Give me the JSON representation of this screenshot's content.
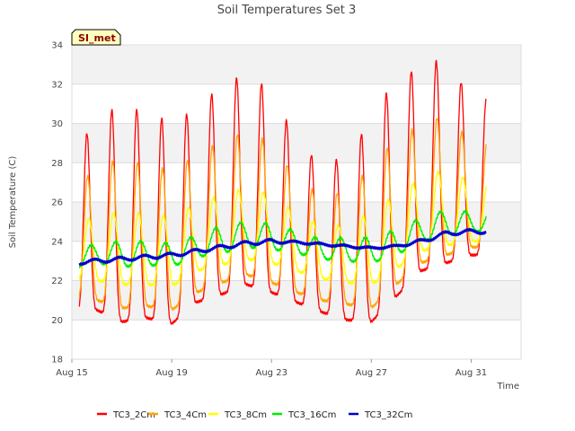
{
  "chart_data": {
    "type": "line",
    "title": "Soil Temperatures Set 3",
    "xlabel": "Time",
    "ylabel": "Soil Temperature (C)",
    "badge": "SI_met",
    "x_start": "Aug 15",
    "x_range_days": [
      0,
      18
    ],
    "xticks": [
      {
        "day": 0,
        "label": "Aug 15"
      },
      {
        "day": 4,
        "label": "Aug 19"
      },
      {
        "day": 8,
        "label": "Aug 23"
      },
      {
        "day": 12,
        "label": "Aug 27"
      },
      {
        "day": 16,
        "label": "Aug 31"
      }
    ],
    "ylim": [
      18,
      34
    ],
    "yticks": [
      18,
      20,
      22,
      24,
      26,
      28,
      30,
      32,
      34
    ],
    "grid": true,
    "legend_position": "bottom",
    "daily_max": {
      "TC3_2Cm": [
        28.4,
        30.2,
        31.0,
        30.5,
        30.1,
        30.7,
        32.0,
        32.5,
        31.7,
        29.1,
        27.9,
        28.3,
        30.2,
        32.4,
        32.8,
        33.4,
        31.2
      ],
      "TC3_4Cm": [
        26.5,
        27.8,
        28.2,
        27.9,
        27.6,
        28.4,
        29.1,
        29.6,
        29.0,
        27.2,
        26.3,
        26.5,
        27.8,
        29.3,
        29.9,
        30.5,
        29.0
      ],
      "TC3_8Cm": [
        24.8,
        25.3,
        25.5,
        25.4,
        25.3,
        25.9,
        26.4,
        26.7,
        26.4,
        25.4,
        24.8,
        24.8,
        25.5,
        26.4,
        27.2,
        27.7,
        27.0
      ],
      "TC3_16Cm": [
        23.5,
        23.9,
        24.0,
        24.0,
        23.9,
        24.3,
        24.8,
        25.0,
        24.9,
        24.5,
        24.1,
        24.2,
        24.2,
        24.6,
        25.2,
        25.6,
        25.5
      ],
      "TC3_32Cm": [
        23.0,
        23.1,
        23.2,
        23.3,
        23.4,
        23.6,
        23.8,
        24.0,
        24.1,
        24.0,
        23.9,
        23.8,
        23.7,
        23.8,
        24.1,
        24.5,
        24.6
      ]
    },
    "daily_min": {
      "TC3_2Cm": [
        20.3,
        20.5,
        19.9,
        20.1,
        19.8,
        20.9,
        21.3,
        21.8,
        21.4,
        20.9,
        20.4,
        20.0,
        19.9,
        21.2,
        22.5,
        22.9,
        23.3
      ],
      "TC3_4Cm": [
        21.0,
        21.0,
        20.6,
        20.7,
        20.5,
        21.4,
        21.9,
        22.3,
        21.9,
        21.4,
        21.0,
        20.8,
        20.6,
        21.8,
        22.9,
        23.3,
        23.7
      ],
      "TC3_8Cm": [
        22.0,
        22.0,
        21.8,
        21.8,
        21.7,
        22.5,
        22.8,
        23.1,
        22.9,
        22.5,
        22.1,
        21.9,
        21.8,
        22.6,
        23.5,
        23.8,
        24.0
      ],
      "TC3_16Cm": [
        22.6,
        22.9,
        22.7,
        22.8,
        22.7,
        23.2,
        23.4,
        23.7,
        23.6,
        23.4,
        23.1,
        23.0,
        22.9,
        23.3,
        24.0,
        24.3,
        24.5
      ],
      "TC3_32Cm": [
        22.8,
        22.9,
        23.0,
        23.1,
        23.2,
        23.4,
        23.6,
        23.8,
        23.9,
        23.9,
        23.8,
        23.7,
        23.6,
        23.7,
        23.9,
        24.3,
        24.4
      ]
    },
    "series": [
      {
        "name": "TC3_2Cm",
        "color": "#ff0000",
        "peak_phase": 0.6,
        "shape": 3.0
      },
      {
        "name": "TC3_4Cm",
        "color": "#ffa500",
        "peak_phase": 0.63,
        "shape": 2.4
      },
      {
        "name": "TC3_8Cm",
        "color": "#ffff00",
        "peak_phase": 0.67,
        "shape": 1.8
      },
      {
        "name": "TC3_16Cm",
        "color": "#00ee00",
        "peak_phase": 0.76,
        "shape": 1.2
      },
      {
        "name": "TC3_32Cm",
        "color": "#0000cd",
        "peak_phase": 0.9,
        "shape": 1.0
      }
    ]
  }
}
